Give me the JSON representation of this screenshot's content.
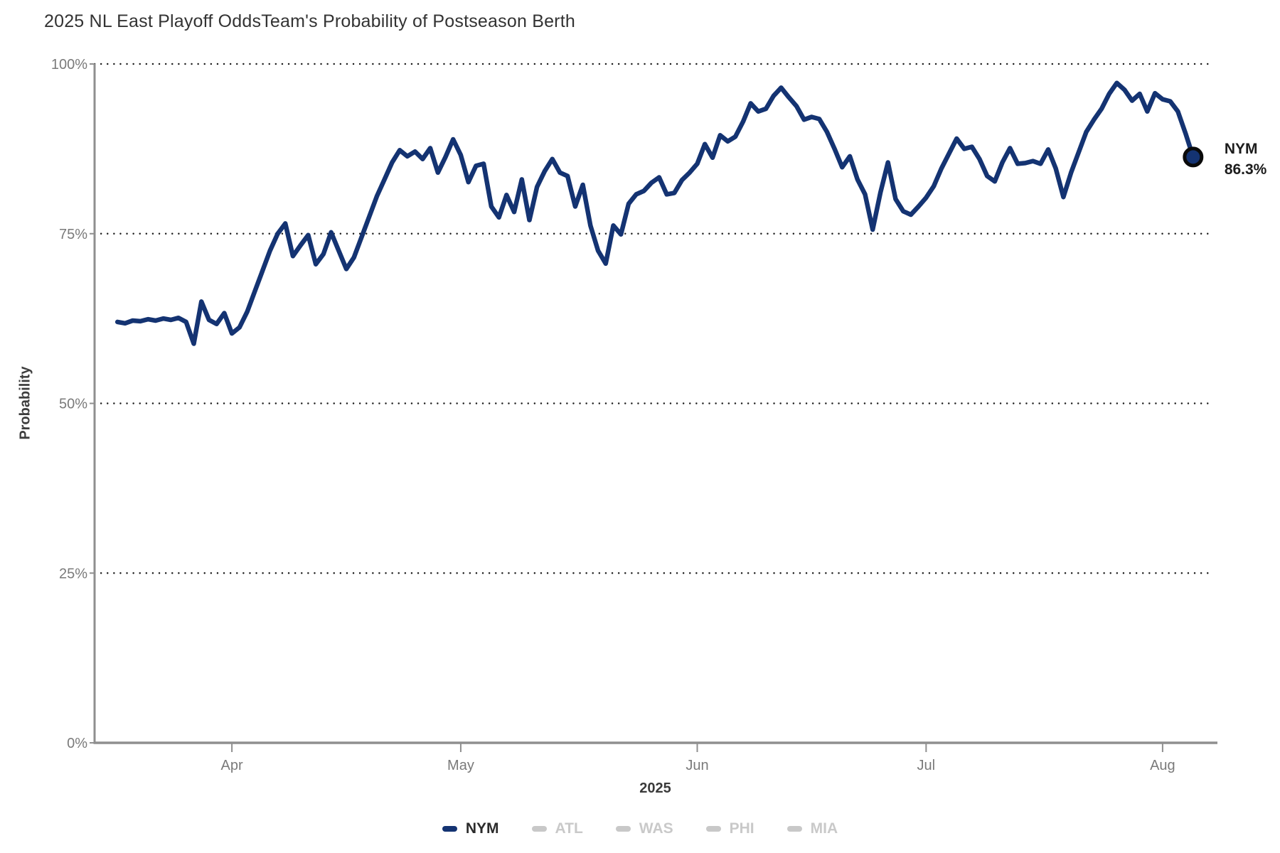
{
  "header": {
    "title": "2025 NL East Playoff Odds",
    "subtitle": "Team's Probability of Postseason Berth"
  },
  "colors": {
    "accent_navy": "#143372",
    "inactive_gray": "#c8c8c8",
    "axis_gray": "#8f8f8f",
    "grid_dot": "#1a1a1a",
    "tick_text": "#7a7a7a"
  },
  "chart_data": {
    "type": "line",
    "title": "2025 NL East Playoff Odds",
    "subtitle": "Team's Probability of Postseason Berth",
    "ylabel": "Probability",
    "xlabel": "2025",
    "ylim": [
      0,
      100
    ],
    "grid": "horizontal dotted at 25% steps",
    "legend_position": "bottom",
    "y_ticks": [
      {
        "value": 100,
        "label": "100%"
      },
      {
        "value": 75,
        "label": "75%"
      },
      {
        "value": 50,
        "label": "50%"
      },
      {
        "value": 25,
        "label": "25%"
      },
      {
        "value": 0,
        "label": "0%"
      }
    ],
    "x_ticks": [
      {
        "label": "Apr",
        "day_index": 15
      },
      {
        "label": "May",
        "day_index": 45
      },
      {
        "label": "Jun",
        "day_index": 76
      },
      {
        "label": "Jul",
        "day_index": 106
      },
      {
        "label": "Aug",
        "day_index": 137
      }
    ],
    "series": [
      {
        "name": "NYM",
        "color": "#143372",
        "active": true,
        "start_date": "2025-03-17",
        "frequency": "daily",
        "values": [
          62.0,
          61.8,
          62.2,
          62.1,
          62.4,
          62.2,
          62.5,
          62.3,
          62.6,
          62.0,
          58.8,
          65.0,
          62.3,
          61.7,
          63.3,
          60.3,
          61.2,
          63.5,
          66.5,
          69.5,
          72.5,
          75.0,
          76.5,
          71.7,
          73.3,
          74.8,
          70.5,
          72.0,
          75.2,
          72.5,
          69.8,
          71.5,
          74.5,
          77.5,
          80.5,
          83.0,
          85.5,
          87.3,
          86.4,
          87.1,
          86.0,
          87.6,
          84.0,
          86.3,
          88.9,
          86.6,
          82.6,
          85.0,
          85.3,
          79.0,
          77.4,
          80.7,
          78.2,
          83.0,
          77.0,
          81.9,
          84.2,
          86.0,
          84.0,
          83.5,
          79.0,
          82.2,
          76.2,
          72.5,
          70.6,
          76.2,
          74.9,
          79.4,
          80.8,
          81.3,
          82.5,
          83.3,
          80.8,
          81.0,
          82.9,
          84.0,
          85.3,
          88.2,
          86.2,
          89.5,
          88.6,
          89.3,
          91.5,
          94.2,
          93.0,
          93.4,
          95.3,
          96.5,
          95.1,
          93.8,
          91.8,
          92.2,
          91.9,
          90.0,
          87.5,
          84.8,
          86.4,
          83.0,
          80.8,
          75.6,
          81.0,
          85.5,
          80.1,
          78.3,
          77.8,
          79.0,
          80.3,
          82.0,
          84.6,
          86.8,
          89.0,
          87.5,
          87.8,
          86.0,
          83.5,
          82.7,
          85.5,
          87.6,
          85.3,
          85.4,
          85.7,
          85.3,
          87.4,
          84.6,
          80.4,
          84.0,
          87.0,
          90.0,
          91.8,
          93.4,
          95.6,
          97.2,
          96.2,
          94.6,
          95.6,
          93.0,
          95.7,
          94.8,
          94.5,
          93.0,
          89.8,
          86.3
        ]
      }
    ],
    "inactive_series": [
      "ATL",
      "WAS",
      "PHI",
      "MIA"
    ],
    "end_label": {
      "team": "NYM",
      "value": "86.3%",
      "final_value": 86.3
    }
  },
  "legend": {
    "items": [
      {
        "label": "NYM",
        "color": "#143372",
        "active": true
      },
      {
        "label": "ATL",
        "color": "#c8c8c8",
        "active": false
      },
      {
        "label": "WAS",
        "color": "#c8c8c8",
        "active": false
      },
      {
        "label": "PHI",
        "color": "#c8c8c8",
        "active": false
      },
      {
        "label": "MIA",
        "color": "#c8c8c8",
        "active": false
      }
    ]
  }
}
